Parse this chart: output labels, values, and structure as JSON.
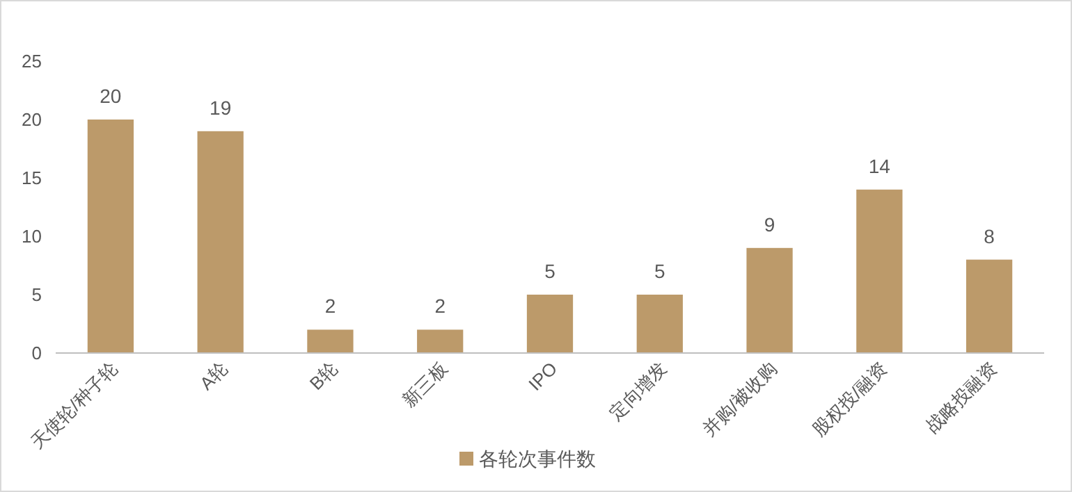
{
  "chart_data": {
    "type": "bar",
    "categories": [
      "天使轮/种子轮",
      "A轮",
      "B轮",
      "新三板",
      "IPO",
      "定向增发",
      "并购/被收购",
      "股权投/融资",
      "战略投融资"
    ],
    "series": [
      {
        "name": "各轮次事件数",
        "color": "#bc9a6a",
        "values": [
          20,
          19,
          2,
          2,
          5,
          5,
          9,
          14,
          8
        ]
      }
    ],
    "ylim": [
      0,
      25
    ],
    "yticks": [
      0,
      5,
      10,
      15,
      20,
      25
    ],
    "data_labels": true,
    "legend": "bottom"
  }
}
